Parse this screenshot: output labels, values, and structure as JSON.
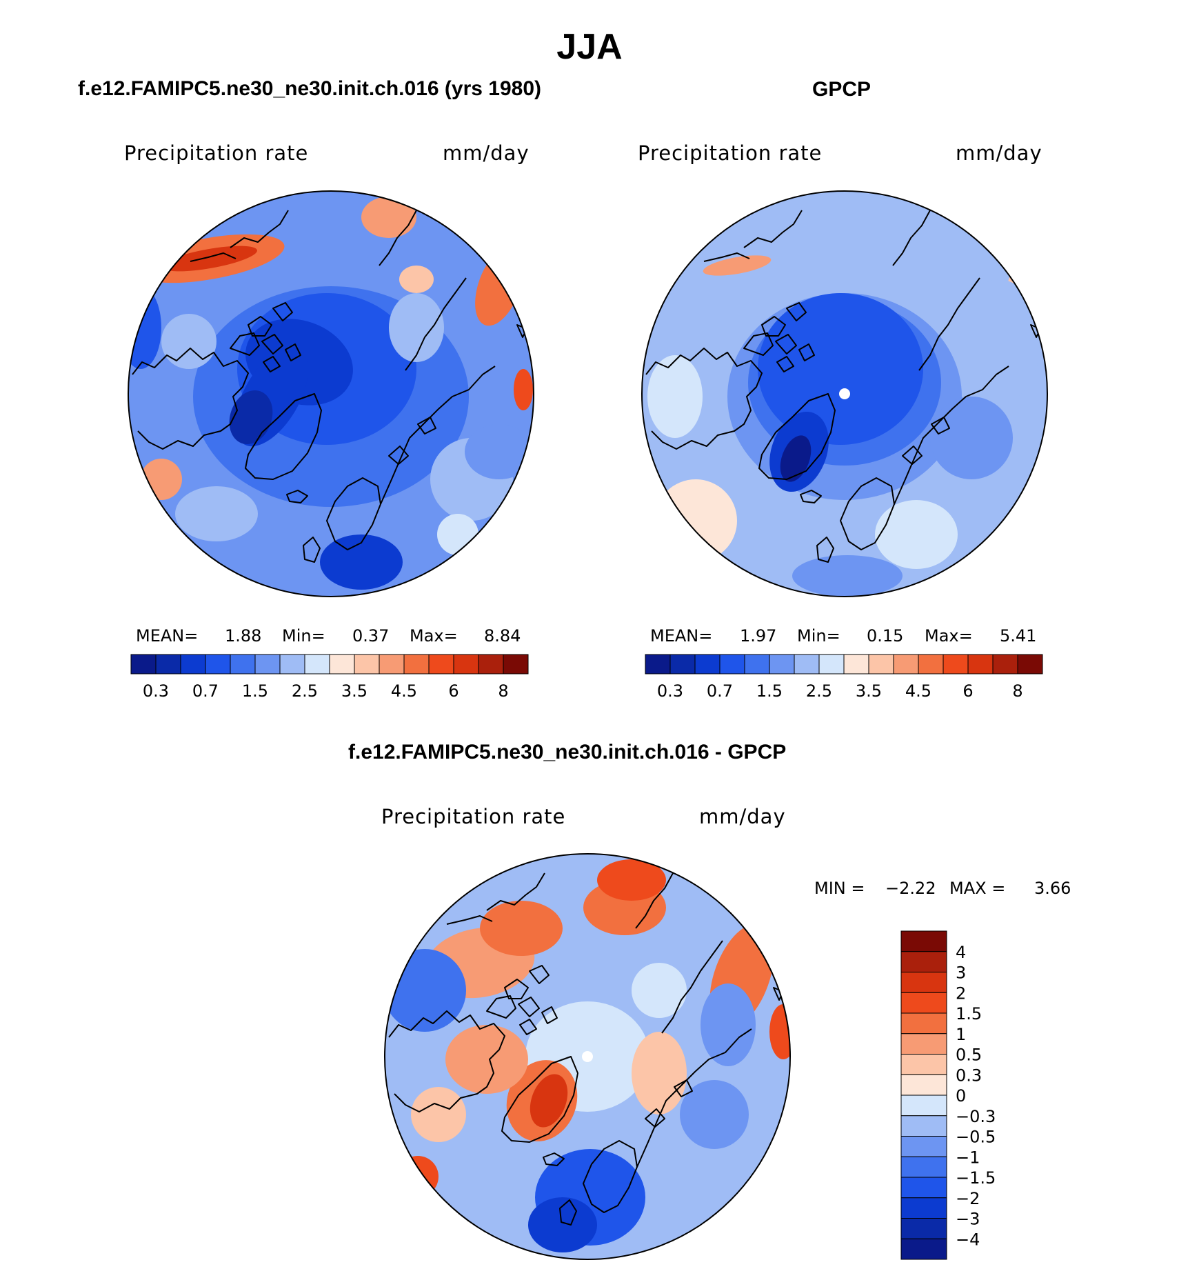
{
  "figure_title": "JJA",
  "chart_data": [
    {
      "type": "heatmap",
      "projection": "north polar stereographic",
      "title": "f.e12.FAMIPC5.ne30_ne30.init.ch.016 (yrs 1980)",
      "left_label": "Precipitation  rate",
      "right_label": "mm/day",
      "stats": {
        "mean_label": "MEAN=",
        "mean": "1.88",
        "min_label": "Min=",
        "min": "0.37",
        "max_label": "Max=",
        "max": "8.84"
      },
      "colorbar": {
        "orientation": "horizontal",
        "levels": [
          "0.3",
          "0.7",
          "1.5",
          "2.5",
          "3.5",
          "4.5",
          "6",
          "8"
        ]
      }
    },
    {
      "type": "heatmap",
      "projection": "north polar stereographic",
      "title": "GPCP",
      "left_label": "Precipitation  rate",
      "right_label": "mm/day",
      "stats": {
        "mean_label": "MEAN=",
        "mean": "1.97",
        "min_label": "Min=",
        "min": "0.15",
        "max_label": "Max=",
        "max": "5.41"
      },
      "colorbar": {
        "orientation": "horizontal",
        "levels": [
          "0.3",
          "0.7",
          "1.5",
          "2.5",
          "3.5",
          "4.5",
          "6",
          "8"
        ]
      }
    },
    {
      "type": "heatmap",
      "projection": "north polar stereographic",
      "title": "f.e12.FAMIPC5.ne30_ne30.init.ch.016 - GPCP",
      "left_label": "Precipitation  rate",
      "right_label": "mm/day",
      "stats": {
        "min_label": "MIN =",
        "min": "−2.22",
        "max_label": "MAX =",
        "max": "3.66"
      },
      "colorbar": {
        "orientation": "vertical",
        "levels": [
          "4",
          "3",
          "2",
          "1.5",
          "1",
          "0.5",
          "0.3",
          "0",
          "−0.3",
          "−0.5",
          "−1",
          "−1.5",
          "−2",
          "−3",
          "−4"
        ]
      }
    }
  ],
  "palettes": {
    "precip": [
      "#0a1a8a",
      "#0a2aa8",
      "#0c3bd0",
      "#1f55ea",
      "#3f72ee",
      "#6d95f2",
      "#9fbcf5",
      "#d4e6fb",
      "#fde6d8",
      "#fcc5a8",
      "#f79b74",
      "#f2703f",
      "#ee4a1c",
      "#d83510",
      "#aa200c",
      "#7a0a05"
    ],
    "diff": [
      "#7a0a05",
      "#aa200c",
      "#d83510",
      "#ee4a1c",
      "#f2703f",
      "#f79b74",
      "#fcc5a8",
      "#fde6d8",
      "#d4e6fb",
      "#9fbcf5",
      "#6d95f2",
      "#3f72ee",
      "#1f55ea",
      "#0c3bd0",
      "#0a2aa8",
      "#0a1a8a"
    ]
  }
}
